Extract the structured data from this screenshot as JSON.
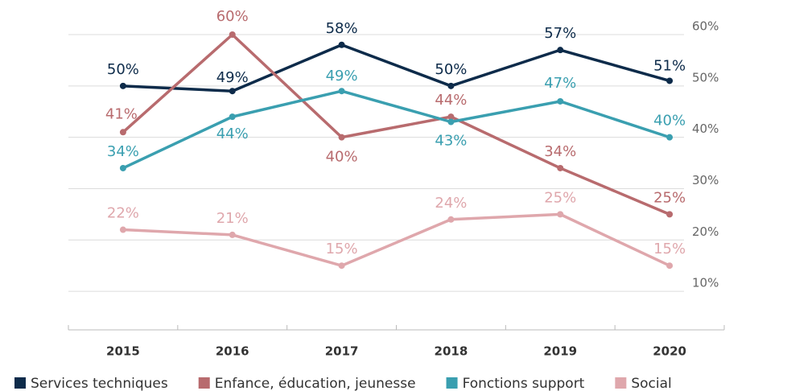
{
  "chart_data": {
    "type": "line",
    "categories": [
      "2015",
      "2016",
      "2017",
      "2018",
      "2019",
      "2020"
    ],
    "series": [
      {
        "name": "Services techniques",
        "color": "#0d2b4a",
        "values": [
          50,
          49,
          58,
          50,
          57,
          51
        ],
        "value_labels": [
          "50%",
          "49%",
          "58%",
          "50%",
          "57%",
          "51%"
        ]
      },
      {
        "name": "Enfance, éducation, jeunesse",
        "color": "#b86b6e",
        "values": [
          41,
          60,
          40,
          44,
          34,
          25
        ],
        "value_labels": [
          "41%",
          "60%",
          "40%",
          "44%",
          "34%",
          "25%"
        ]
      },
      {
        "name": "Fonctions support",
        "color": "#3a9fb0",
        "values": [
          34,
          44,
          49,
          43,
          47,
          40
        ],
        "value_labels": [
          "34%",
          "44%",
          "49%",
          "43%",
          "47%",
          "40%"
        ]
      },
      {
        "name": "Social",
        "color": "#dfa7ac",
        "values": [
          22,
          21,
          15,
          24,
          25,
          15
        ],
        "value_labels": [
          "22%",
          "21%",
          "15%",
          "24%",
          "25%",
          "15%"
        ]
      }
    ],
    "ylim": [
      2.5,
      66
    ],
    "yticks": [
      {
        "value": 10,
        "label": "10%"
      },
      {
        "value": 20,
        "label": "20%"
      },
      {
        "value": 30,
        "label": "30%"
      },
      {
        "value": 40,
        "label": "40%"
      },
      {
        "value": 50,
        "label": "50%"
      },
      {
        "value": 60,
        "label": "60%"
      }
    ],
    "grid": true
  }
}
